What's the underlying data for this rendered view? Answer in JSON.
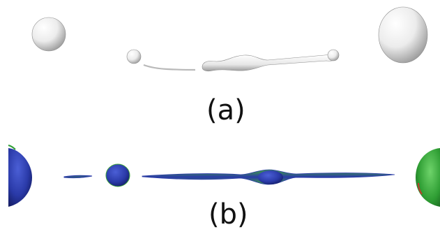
{
  "panels": [
    {
      "id": "a",
      "label": "(a)",
      "render_style": "grayscale",
      "surface_color": "#e8e8e8"
    },
    {
      "id": "b",
      "label": "(b)",
      "render_style": "colored",
      "colors": {
        "blue": "#2a3aa8",
        "green": "#2f9e34",
        "accent_red": "#c23a2e"
      }
    }
  ]
}
